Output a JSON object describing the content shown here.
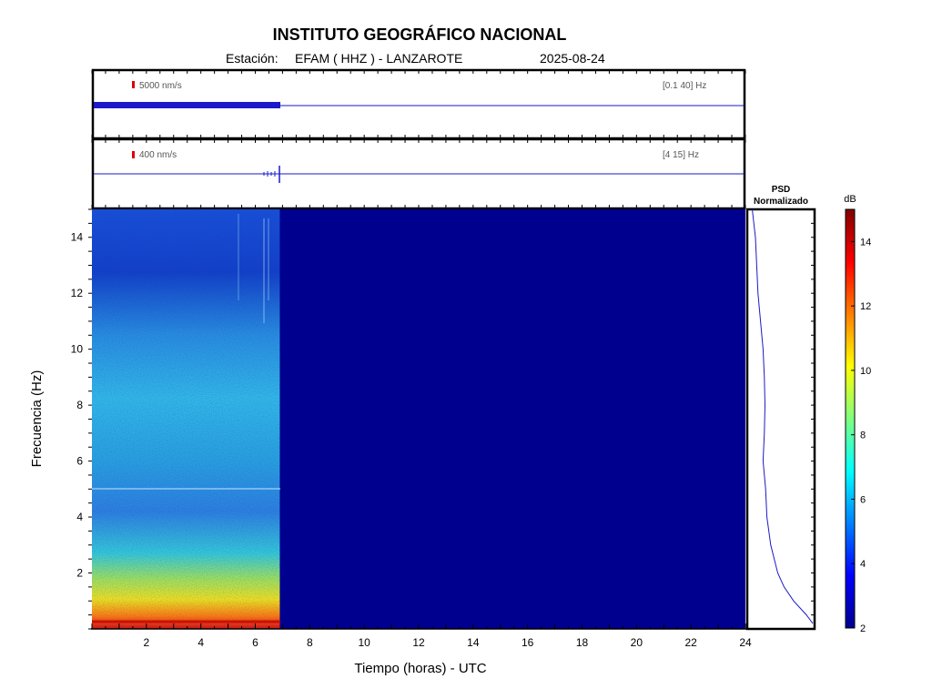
{
  "header": {
    "title": "INSTITUTO GEOGRÁFICO NACIONAL",
    "station_label": "Estación:",
    "station": "EFAM ( HHZ ) - LANZAROTE",
    "date": "2025-08-24"
  },
  "trace_panels": [
    {
      "scale": "5000 nm/s",
      "band": "[0.1 40] Hz",
      "data_end_hour": 6.9
    },
    {
      "scale": "400 nm/s",
      "band": "[4 15] Hz",
      "data_end_hour": 6.9
    }
  ],
  "psd_title": [
    "PSD",
    "Normalizado"
  ],
  "colorbar": {
    "unit": "dB",
    "ticks": [
      "14",
      "12",
      "10",
      "8",
      "6",
      "4",
      "2"
    ],
    "min": 2,
    "max": 15
  },
  "colors": {
    "trace": "#1a1ac8",
    "background_fill": "#00008f",
    "marker": "#dd0000"
  },
  "chart_data": {
    "type": "heatmap",
    "xlabel": "Tiempo (horas) - UTC",
    "ylabel": "Frecuencia  (Hz)",
    "xlim": [
      0,
      24
    ],
    "ylim": [
      0,
      15
    ],
    "xticks": [
      "2",
      "4",
      "6",
      "8",
      "10",
      "12",
      "14",
      "16",
      "18",
      "20",
      "22",
      "24"
    ],
    "yticks": [
      "14",
      "12",
      "10",
      "8",
      "6",
      "4",
      "2"
    ],
    "data_end_hour": 6.9,
    "band_energy_db": [
      {
        "freq": [
          0,
          0.6
        ],
        "db": 12.5
      },
      {
        "freq": [
          0.6,
          1.5
        ],
        "db": 9
      },
      {
        "freq": [
          1.5,
          2.5
        ],
        "db": 7
      },
      {
        "freq": [
          2.5,
          5
        ],
        "db": 5.2
      },
      {
        "freq": [
          5,
          10
        ],
        "db": 6
      },
      {
        "freq": [
          10,
          15
        ],
        "db": 4.5
      }
    ],
    "psd_normalized": {
      "freq": [
        15,
        14,
        13,
        12,
        11,
        10,
        9,
        8,
        7,
        6,
        5,
        4,
        3,
        2,
        1.5,
        1,
        0.5,
        0.2
      ],
      "value": [
        0.05,
        0.1,
        0.12,
        0.14,
        0.18,
        0.22,
        0.24,
        0.25,
        0.24,
        0.22,
        0.26,
        0.28,
        0.34,
        0.45,
        0.55,
        0.7,
        0.9,
        1.0
      ]
    }
  }
}
